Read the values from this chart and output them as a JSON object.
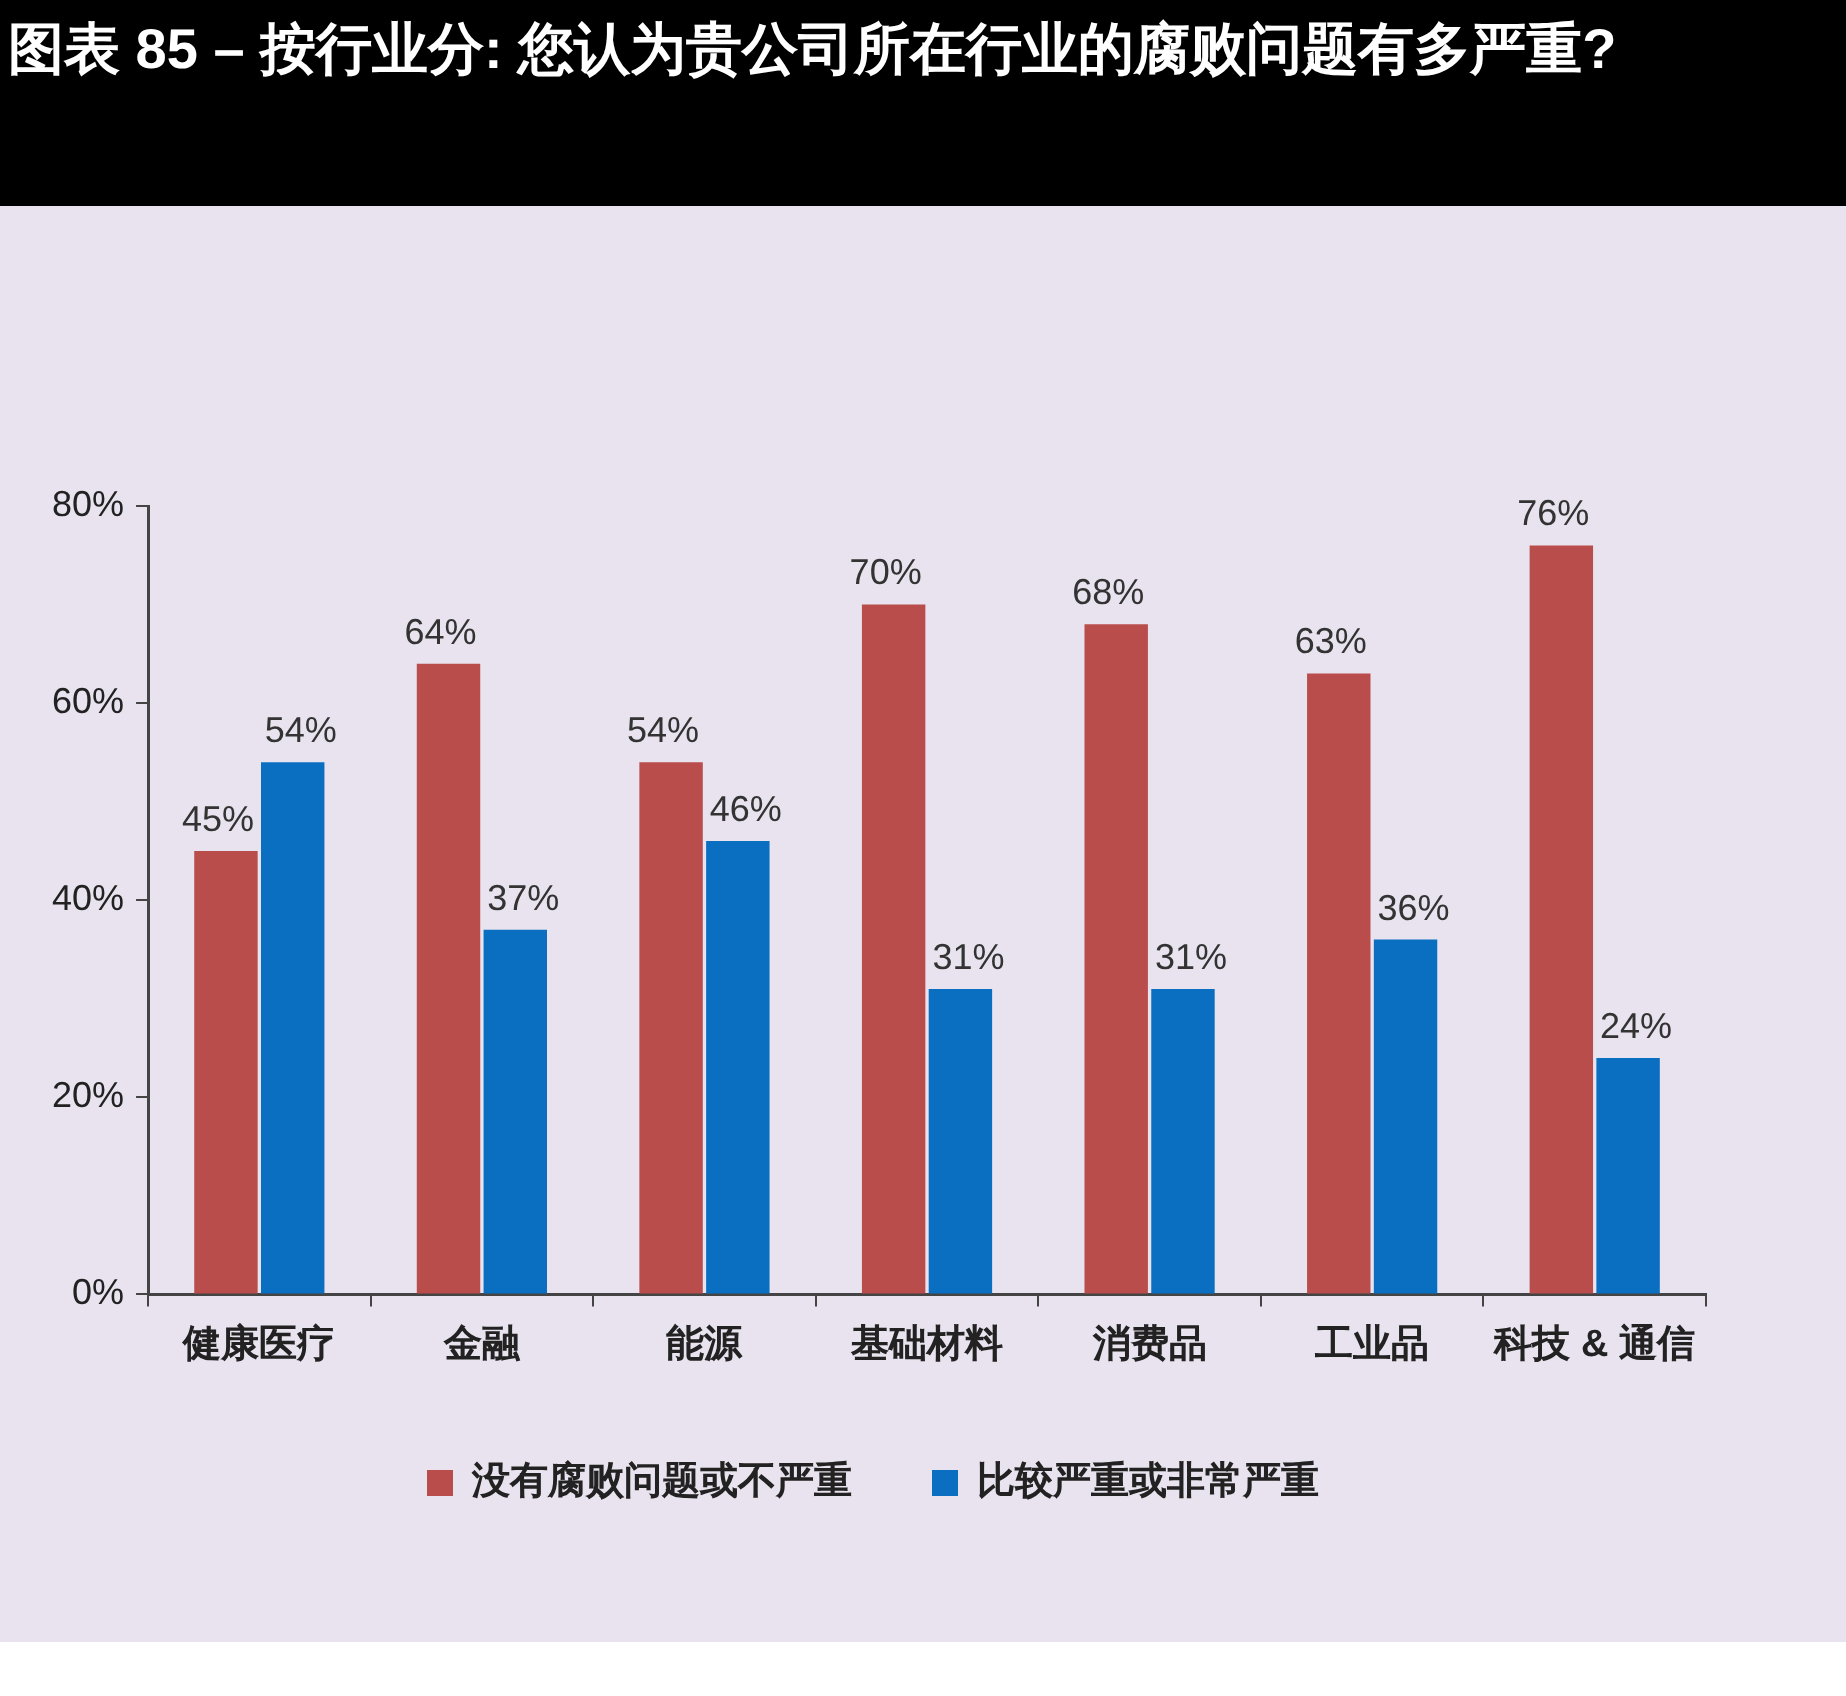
{
  "chart_data": {
    "type": "bar",
    "title": "图表 85 – 按行业分: 您认为贵公司所在行业的腐败问题有多严重?",
    "categories": [
      "健康医疗",
      "金融",
      "能源",
      "基础材料",
      "消费品",
      "工业品",
      "科技 & 通信"
    ],
    "series": [
      {
        "name": "没有腐败问题或不严重",
        "color": "#b94d4c",
        "values": [
          45,
          64,
          54,
          70,
          68,
          63,
          76
        ],
        "value_labels": [
          "45%",
          "64%",
          "54%",
          "70%",
          "68%",
          "63%",
          "76%"
        ]
      },
      {
        "name": "比较严重或非常严重",
        "color": "#0a6fc0",
        "values": [
          54,
          37,
          46,
          31,
          31,
          36,
          24
        ],
        "value_labels": [
          "54%",
          "37%",
          "46%",
          "31%",
          "31%",
          "36%",
          "24%"
        ]
      }
    ],
    "ylim": [
      0,
      80
    ],
    "yticks": [
      {
        "value": 0,
        "label": "0%"
      },
      {
        "value": 20,
        "label": "20%"
      },
      {
        "value": 40,
        "label": "40%"
      },
      {
        "value": 60,
        "label": "60%"
      },
      {
        "value": 80,
        "label": "80%"
      }
    ],
    "grid": false,
    "legend": "bottom"
  }
}
